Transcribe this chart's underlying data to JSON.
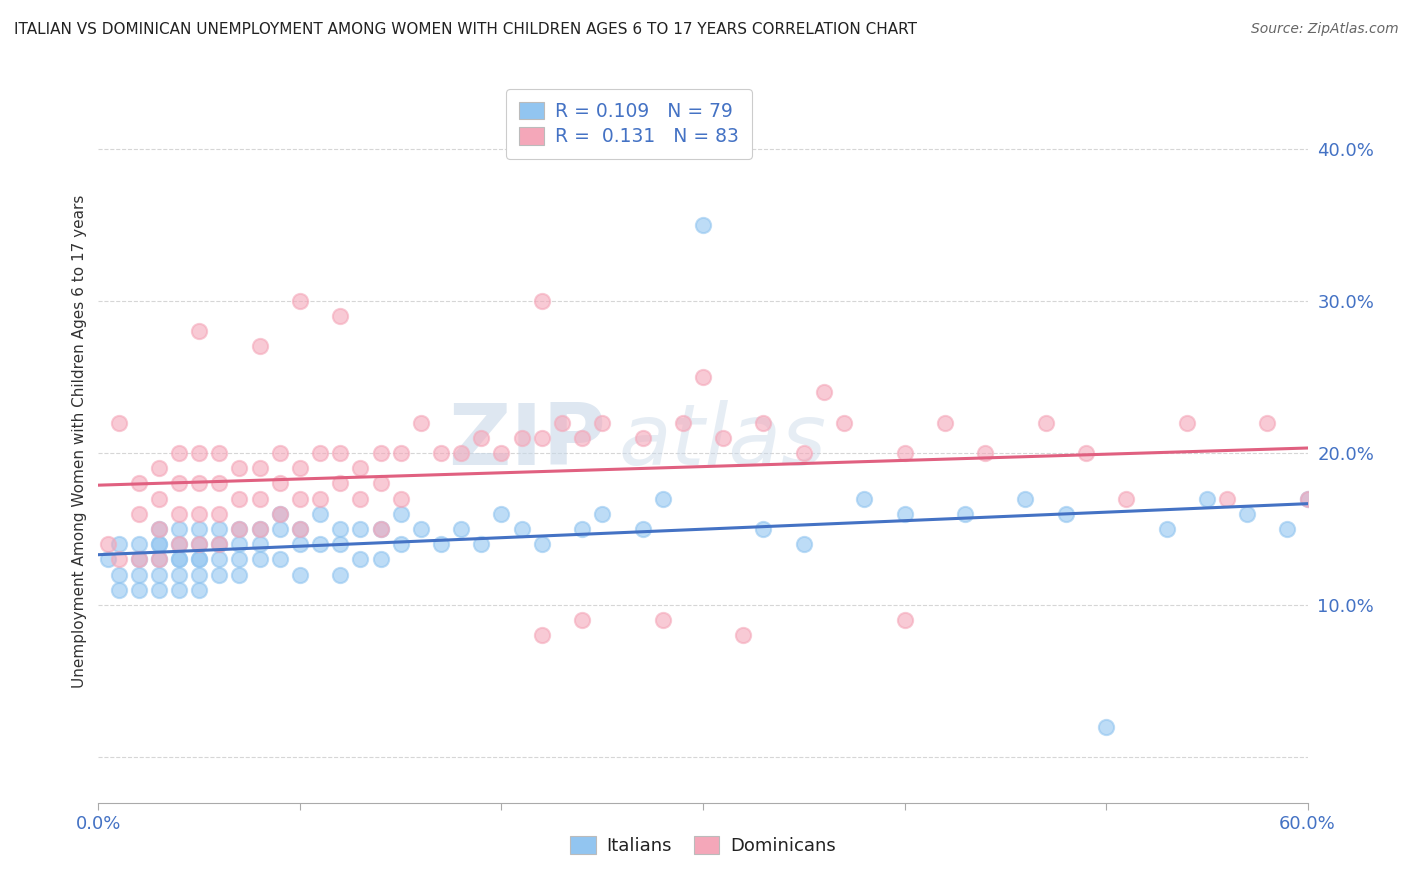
{
  "title": "ITALIAN VS DOMINICAN UNEMPLOYMENT AMONG WOMEN WITH CHILDREN AGES 6 TO 17 YEARS CORRELATION CHART",
  "source": "Source: ZipAtlas.com",
  "ylabel": "Unemployment Among Women with Children Ages 6 to 17 years",
  "y_ticks": [
    0.0,
    0.1,
    0.2,
    0.3,
    0.4
  ],
  "y_tick_labels": [
    "",
    "10.0%",
    "20.0%",
    "30.0%",
    "40.0%"
  ],
  "x_range": [
    0.0,
    0.6
  ],
  "y_range": [
    -0.03,
    0.445
  ],
  "italian_R": 0.109,
  "italian_N": 79,
  "dominican_R": 0.131,
  "dominican_N": 83,
  "italian_color": "#92C5F0",
  "dominican_color": "#F4A7B9",
  "italian_line_color": "#4472C4",
  "dominican_line_color": "#E06080",
  "legend_text_color": "#4472c4",
  "watermark1": "ZIP",
  "watermark2": "atlas",
  "background_color": "#ffffff",
  "grid_color": "#cccccc",
  "italian_x": [
    0.005,
    0.01,
    0.01,
    0.01,
    0.02,
    0.02,
    0.02,
    0.02,
    0.03,
    0.03,
    0.03,
    0.03,
    0.03,
    0.03,
    0.04,
    0.04,
    0.04,
    0.04,
    0.04,
    0.04,
    0.05,
    0.05,
    0.05,
    0.05,
    0.05,
    0.05,
    0.06,
    0.06,
    0.06,
    0.06,
    0.07,
    0.07,
    0.07,
    0.07,
    0.08,
    0.08,
    0.08,
    0.09,
    0.09,
    0.09,
    0.1,
    0.1,
    0.1,
    0.11,
    0.11,
    0.12,
    0.12,
    0.12,
    0.13,
    0.13,
    0.14,
    0.14,
    0.15,
    0.15,
    0.16,
    0.17,
    0.18,
    0.19,
    0.2,
    0.21,
    0.22,
    0.24,
    0.25,
    0.27,
    0.28,
    0.3,
    0.33,
    0.35,
    0.38,
    0.4,
    0.43,
    0.46,
    0.48,
    0.5,
    0.53,
    0.55,
    0.57,
    0.59,
    0.6
  ],
  "italian_y": [
    0.13,
    0.14,
    0.12,
    0.11,
    0.14,
    0.13,
    0.12,
    0.11,
    0.15,
    0.14,
    0.14,
    0.13,
    0.12,
    0.11,
    0.15,
    0.14,
    0.13,
    0.13,
    0.12,
    0.11,
    0.15,
    0.14,
    0.13,
    0.13,
    0.12,
    0.11,
    0.15,
    0.14,
    0.13,
    0.12,
    0.15,
    0.14,
    0.13,
    0.12,
    0.15,
    0.14,
    0.13,
    0.16,
    0.15,
    0.13,
    0.15,
    0.14,
    0.12,
    0.16,
    0.14,
    0.15,
    0.14,
    0.12,
    0.15,
    0.13,
    0.15,
    0.13,
    0.16,
    0.14,
    0.15,
    0.14,
    0.15,
    0.14,
    0.16,
    0.15,
    0.14,
    0.15,
    0.16,
    0.15,
    0.17,
    0.35,
    0.15,
    0.14,
    0.17,
    0.16,
    0.16,
    0.17,
    0.16,
    0.02,
    0.15,
    0.17,
    0.16,
    0.15,
    0.17
  ],
  "dominican_x": [
    0.005,
    0.01,
    0.01,
    0.02,
    0.02,
    0.02,
    0.03,
    0.03,
    0.03,
    0.03,
    0.04,
    0.04,
    0.04,
    0.04,
    0.05,
    0.05,
    0.05,
    0.05,
    0.06,
    0.06,
    0.06,
    0.06,
    0.07,
    0.07,
    0.07,
    0.08,
    0.08,
    0.08,
    0.09,
    0.09,
    0.09,
    0.1,
    0.1,
    0.1,
    0.11,
    0.11,
    0.12,
    0.12,
    0.13,
    0.13,
    0.14,
    0.14,
    0.14,
    0.15,
    0.15,
    0.16,
    0.17,
    0.18,
    0.19,
    0.2,
    0.21,
    0.22,
    0.23,
    0.24,
    0.25,
    0.27,
    0.29,
    0.31,
    0.33,
    0.35,
    0.37,
    0.4,
    0.42,
    0.44,
    0.47,
    0.49,
    0.51,
    0.54,
    0.56,
    0.58,
    0.6,
    0.05,
    0.08,
    0.1,
    0.12,
    0.22,
    0.24,
    0.3,
    0.36,
    0.4,
    0.22,
    0.28,
    0.32
  ],
  "dominican_y": [
    0.14,
    0.22,
    0.13,
    0.18,
    0.16,
    0.13,
    0.19,
    0.17,
    0.15,
    0.13,
    0.2,
    0.18,
    0.16,
    0.14,
    0.2,
    0.18,
    0.16,
    0.14,
    0.2,
    0.18,
    0.16,
    0.14,
    0.19,
    0.17,
    0.15,
    0.19,
    0.17,
    0.15,
    0.2,
    0.18,
    0.16,
    0.19,
    0.17,
    0.15,
    0.2,
    0.17,
    0.2,
    0.18,
    0.19,
    0.17,
    0.2,
    0.18,
    0.15,
    0.2,
    0.17,
    0.22,
    0.2,
    0.2,
    0.21,
    0.2,
    0.21,
    0.21,
    0.22,
    0.21,
    0.22,
    0.21,
    0.22,
    0.21,
    0.22,
    0.2,
    0.22,
    0.2,
    0.22,
    0.2,
    0.22,
    0.2,
    0.17,
    0.22,
    0.17,
    0.22,
    0.17,
    0.28,
    0.27,
    0.3,
    0.29,
    0.3,
    0.09,
    0.25,
    0.24,
    0.09,
    0.08,
    0.09,
    0.08
  ]
}
